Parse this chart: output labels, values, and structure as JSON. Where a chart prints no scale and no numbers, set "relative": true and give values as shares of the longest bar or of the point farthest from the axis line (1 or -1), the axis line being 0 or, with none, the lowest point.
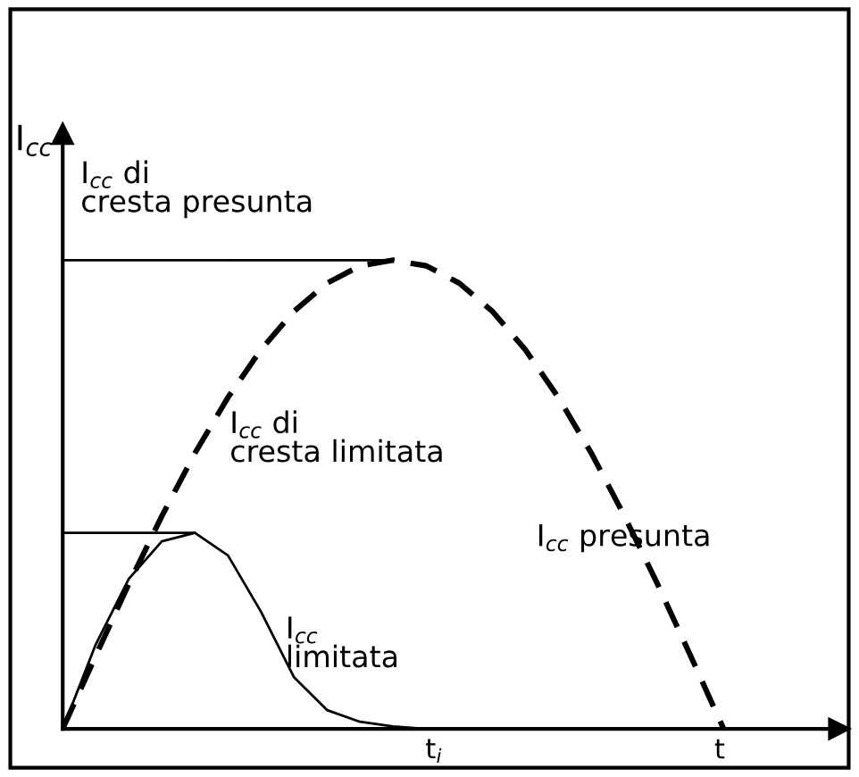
{
  "chart_data": {
    "type": "line",
    "relative": true,
    "ylabel": "I$_{cc}$",
    "xlabel": "t",
    "categories": [
      null,
      null,
      null,
      null,
      null,
      null,
      null,
      null,
      null,
      null,
      null,
      null,
      null,
      null,
      null,
      null,
      null,
      null,
      null,
      null,
      null
    ],
    "series": [
      {
        "color": "#000000",
        "line_style": "dashed",
        "values": [
          0,
          0.156,
          0.309,
          0.454,
          0.588,
          0.707,
          0.809,
          0.891,
          0.951,
          0.988,
          1,
          0.988,
          0.951,
          0.891,
          0.809,
          0.707,
          0.588,
          0.454,
          0.309,
          0.156,
          0
        ]
      },
      {
        "color": "#000000",
        "line_style": "solid",
        "values": [
          0,
          0.18,
          0.32,
          0.4,
          0.418,
          0.37,
          0.25,
          0.11,
          0.04,
          0.015,
          0.005,
          0,
          null,
          null,
          null,
          null,
          null,
          null,
          null,
          null,
          null
        ]
      },
      {
        "color": "#000000",
        "line_style": "solid",
        "values": [
          1,
          1,
          1,
          1,
          1,
          1,
          1,
          1,
          1,
          1,
          1,
          null,
          null,
          null,
          null,
          null,
          null,
          null,
          null,
          null,
          null
        ]
      },
      {
        "color": "#000000",
        "line_style": "solid",
        "values": [
          0.418,
          0.418,
          0.418,
          0.418,
          0.418,
          null,
          null,
          null,
          null,
          null,
          null,
          null,
          null,
          null,
          null,
          null,
          null,
          null,
          null,
          null,
          null
        ]
      }
    ],
    "annotations": [
      "I$_{cc}$ di\ncresta presunta",
      "I$_{cc}$ presunta",
      "I$_{cc}$ di\ncresta limitata",
      "I$_{cc}$\nlimitata",
      "t$_{i}$"
    ]
  }
}
